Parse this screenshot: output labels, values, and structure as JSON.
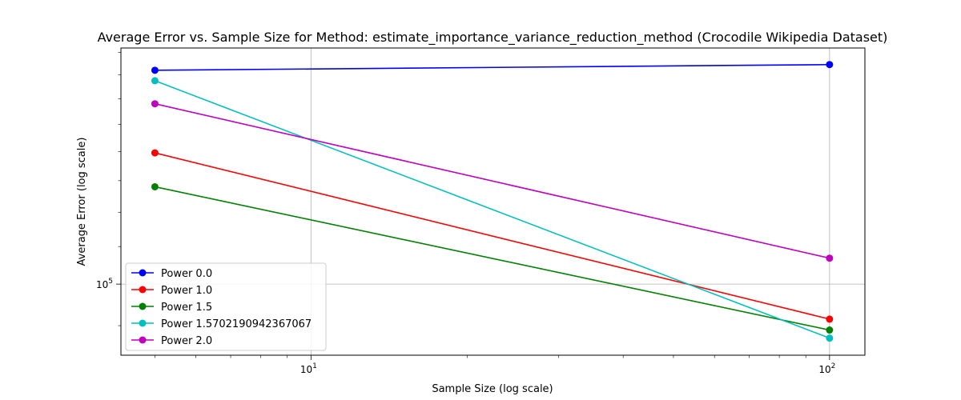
{
  "chart_data": {
    "type": "line",
    "title": "Average Error vs. Sample Size for Method: estimate_importance_variance_reduction_method (Crocodile Wikipedia Dataset)",
    "xlabel": "Sample Size (log scale)",
    "ylabel": "Average Error (log scale)",
    "xscale": "log",
    "yscale": "log",
    "xlim": [
      4.3,
      117
    ],
    "ylim": [
      83500,
      182000
    ],
    "grid": "major",
    "legend_position": "lower-left",
    "x_ticks": [
      {
        "value": 10,
        "base": "10",
        "exp": "1"
      },
      {
        "value": 100,
        "base": "10",
        "exp": "2"
      }
    ],
    "y_ticks": [
      {
        "value": 100000,
        "base": "10",
        "exp": "5"
      }
    ],
    "x": [
      5,
      100
    ],
    "series": [
      {
        "name": "Power 0.0",
        "color": "#0000ff",
        "values": [
          172000,
          174500
        ]
      },
      {
        "name": "Power 1.0",
        "color": "#ff0000",
        "values": [
          139500,
          91500
        ]
      },
      {
        "name": "Power 1.5",
        "color": "#008000",
        "values": [
          128000,
          89000
        ]
      },
      {
        "name": "Power 1.5702190942367067",
        "color": "#00bfbf",
        "values": [
          167500,
          87200
        ]
      },
      {
        "name": "Power 2.0",
        "color": "#bf00bf",
        "values": [
          158000,
          106800
        ]
      }
    ]
  }
}
